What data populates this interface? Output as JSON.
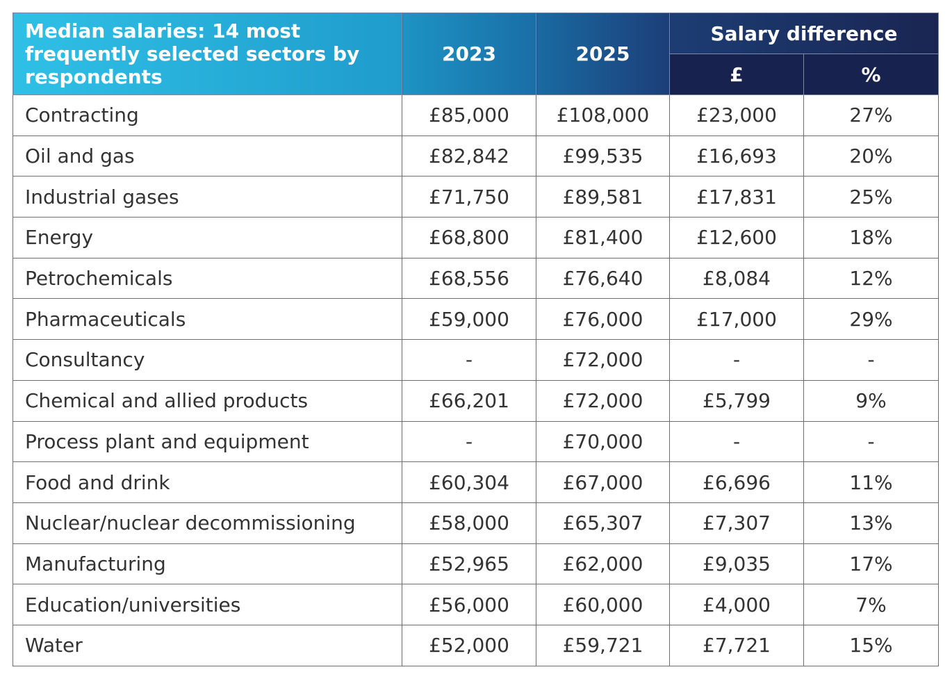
{
  "header": {
    "title": "Median salaries: 14 most frequently selected sectors by respondents",
    "col_a": "2023",
    "col_b": "2025",
    "difference": "Salary difference",
    "pound": "£",
    "percent": "%"
  },
  "table": {
    "rows": [
      [
        "Contracting",
        "£85,000",
        "£108,000",
        "£23,000",
        "27%"
      ],
      [
        "Oil and gas",
        "£82,842",
        "£99,535",
        "£16,693",
        "20%"
      ],
      [
        "Industrial gases",
        "£71,750",
        "£89,581",
        "£17,831",
        "25%"
      ],
      [
        "Energy",
        "£68,800",
        "£81,400",
        "£12,600",
        "18%"
      ],
      [
        "Petrochemicals",
        "£68,556",
        "£76,640",
        "£8,084",
        "12%"
      ],
      [
        "Pharmaceuticals",
        "£59,000",
        "£76,000",
        "£17,000",
        "29%"
      ],
      [
        "Consultancy",
        "-",
        "£72,000",
        "-",
        "-"
      ],
      [
        "Chemical and allied products",
        "£66,201",
        "£72,000",
        "£5,799",
        "9%"
      ],
      [
        "Process plant and equipment",
        "-",
        "£70,000",
        "-",
        "-"
      ],
      [
        "Food and drink",
        "£60,304",
        "£67,000",
        "£6,696",
        "11%"
      ],
      [
        "Nuclear/nuclear decommissioning",
        "£58,000",
        "£65,307",
        "£7,307",
        "13%"
      ],
      [
        "Manufacturing",
        "£52,965",
        "£62,000",
        "£9,035",
        "17%"
      ],
      [
        "Education/universities",
        "£56,000",
        "£60,000",
        "£4,000",
        "7%"
      ],
      [
        "Water",
        "£52,000",
        "£59,721",
        "£7,721",
        "15%"
      ]
    ]
  }
}
